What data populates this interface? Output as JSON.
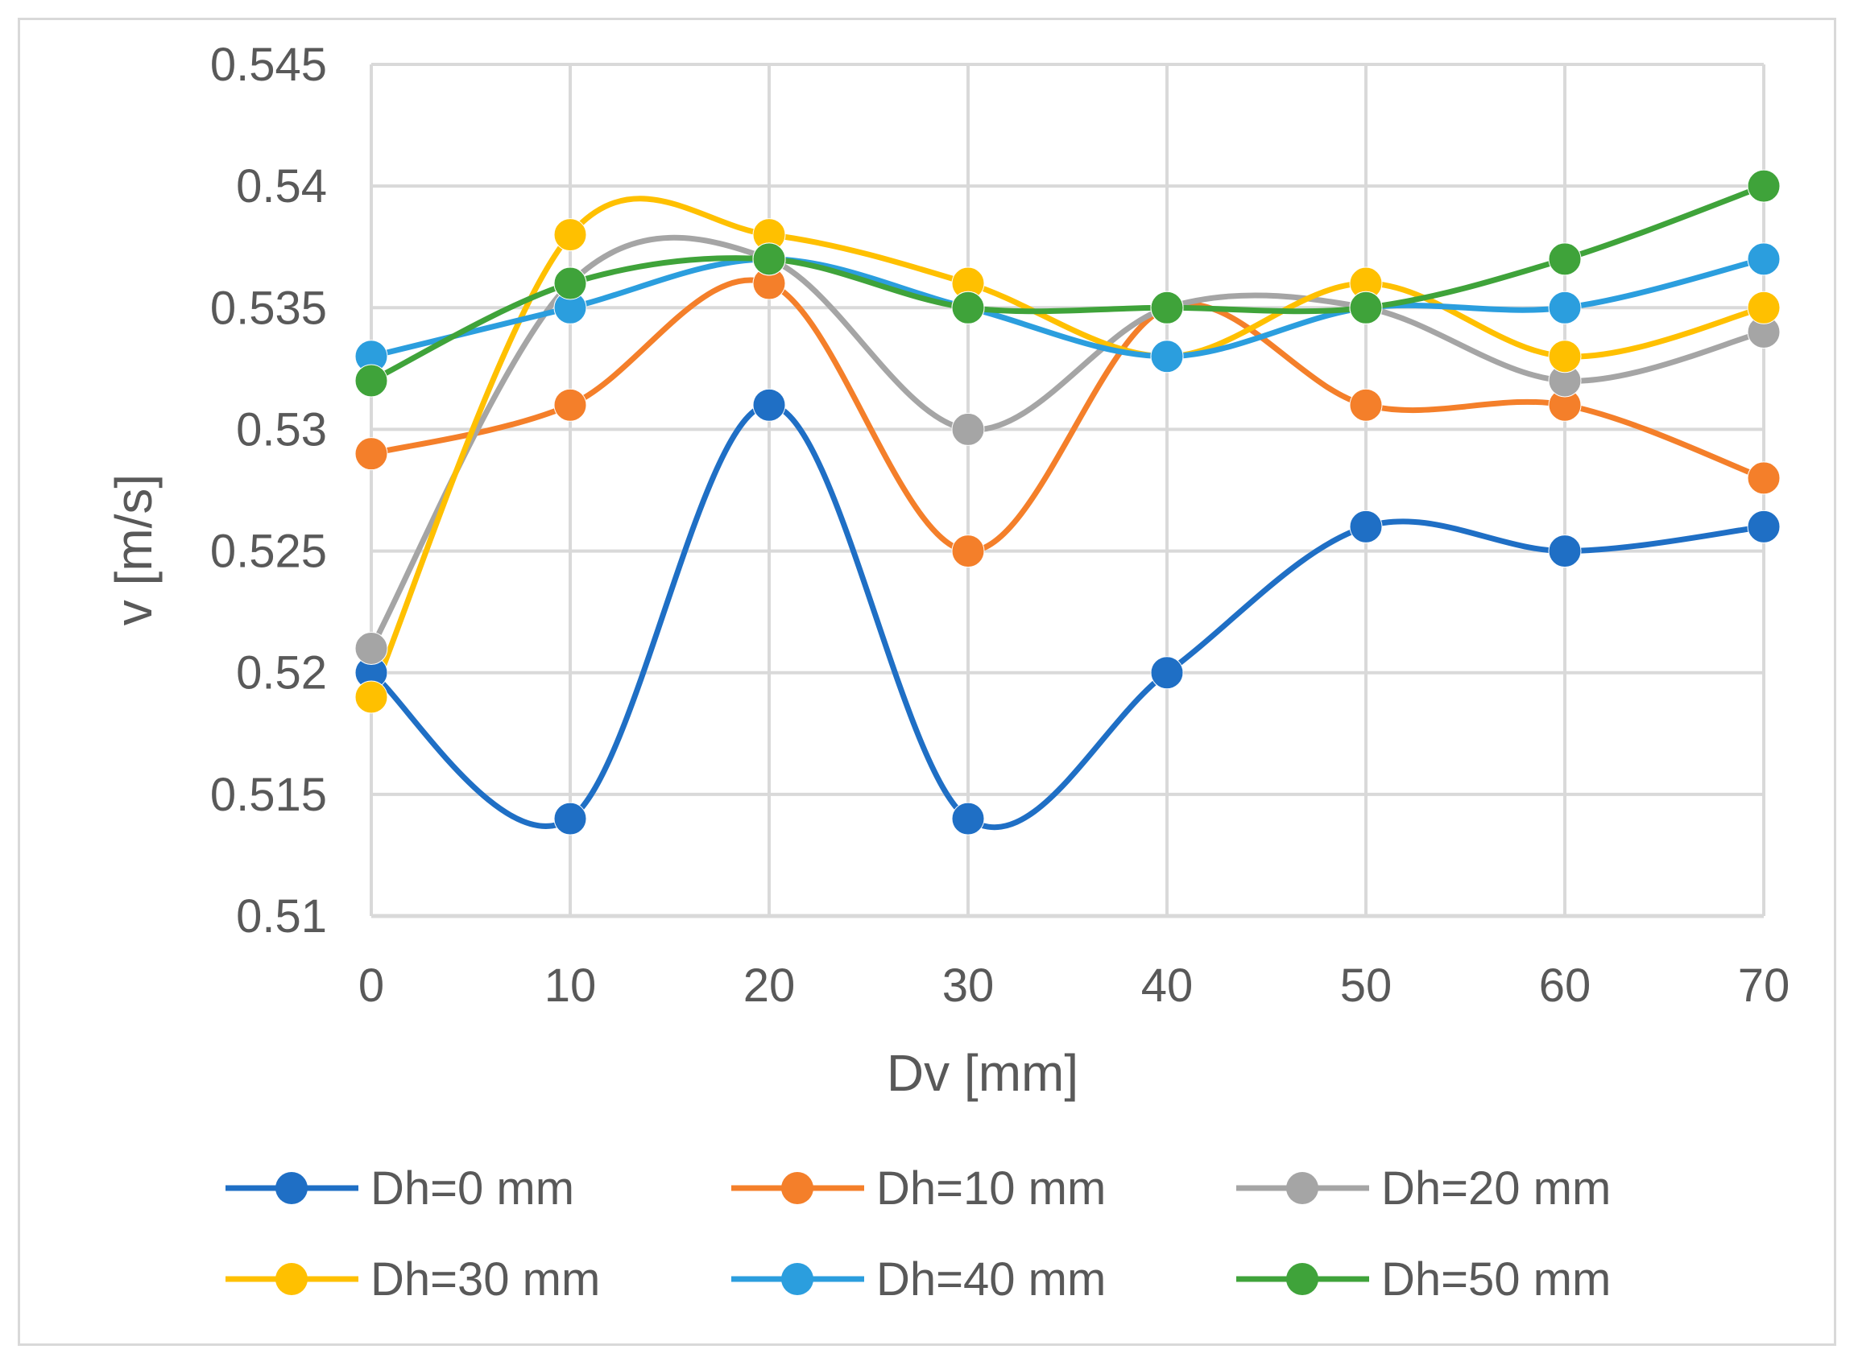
{
  "chart_data": {
    "type": "line",
    "smooth": true,
    "title": "",
    "xlabel": "Dv  [mm]",
    "ylabel": "v [m/s]",
    "x": [
      0,
      10,
      20,
      30,
      40,
      50,
      60,
      70
    ],
    "x_tick_labels": [
      "0",
      "10",
      "20",
      "30",
      "40",
      "50",
      "60",
      "70"
    ],
    "ylim": [
      0.51,
      0.545
    ],
    "y_ticks": [
      0.51,
      0.515,
      0.52,
      0.525,
      0.53,
      0.535,
      0.54,
      0.545
    ],
    "y_tick_labels": [
      "0.51",
      "0.515",
      "0.52",
      "0.525",
      "0.53",
      "0.535",
      "0.54",
      "0.545"
    ],
    "grid": true,
    "legend_position": "bottom",
    "series": [
      {
        "name": "Dh=0 mm",
        "color": "#1f6fc5",
        "values": [
          0.52,
          0.514,
          0.531,
          0.514,
          0.52,
          0.526,
          0.525,
          0.526
        ]
      },
      {
        "name": "Dh=10 mm",
        "color": "#f47f2a",
        "values": [
          0.529,
          0.531,
          0.536,
          0.525,
          0.535,
          0.531,
          0.531,
          0.528
        ]
      },
      {
        "name": "Dh=20 mm",
        "color": "#a5a5a5",
        "values": [
          0.521,
          0.536,
          0.537,
          0.53,
          0.535,
          0.535,
          0.532,
          0.534
        ]
      },
      {
        "name": "Dh=30 mm",
        "color": "#ffc000",
        "values": [
          0.519,
          0.538,
          0.538,
          0.536,
          0.533,
          0.536,
          0.533,
          0.535
        ]
      },
      {
        "name": "Dh=40 mm",
        "color": "#2b9ede",
        "values": [
          0.533,
          0.535,
          0.537,
          0.535,
          0.533,
          0.535,
          0.535,
          0.537
        ]
      },
      {
        "name": "Dh=50 mm",
        "color": "#3fa33a",
        "values": [
          0.532,
          0.536,
          0.537,
          0.535,
          0.535,
          0.535,
          0.537,
          0.54
        ]
      }
    ]
  }
}
